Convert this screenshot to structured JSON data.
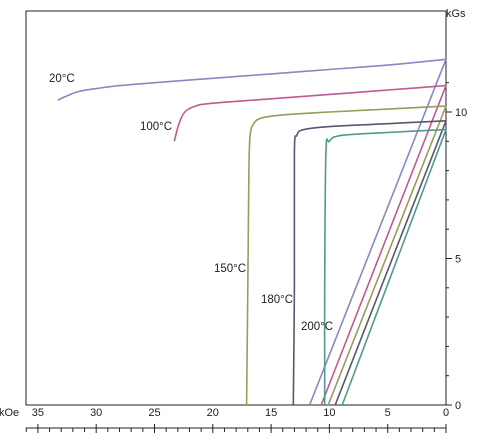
{
  "chart_data": {
    "type": "line",
    "title": "",
    "xlabel": "kOe",
    "ylabel": "kGs",
    "x_reversed": true,
    "xlim": [
      0,
      36
    ],
    "ylim": [
      0,
      12.4
    ],
    "x_ticks": [
      {
        "value": 35,
        "label": "35"
      },
      {
        "value": 30,
        "label": "30"
      },
      {
        "value": 25,
        "label": "25"
      },
      {
        "value": 20,
        "label": "20"
      },
      {
        "value": 15,
        "label": "15"
      },
      {
        "value": 10,
        "label": "10"
      },
      {
        "value": 5,
        "label": "5"
      },
      {
        "value": 0,
        "label": "0"
      }
    ],
    "y_ticks": [
      {
        "value": 0,
        "label": "0"
      },
      {
        "value": 5,
        "label": "5"
      },
      {
        "value": 10,
        "label": "10"
      }
    ],
    "grid": false,
    "series": [
      {
        "name": "20°C",
        "color": "#8c86c2",
        "demag_curve": [
          [
            0,
            11.8
          ],
          [
            5,
            11.6
          ],
          [
            10,
            11.45
          ],
          [
            15,
            11.3
          ],
          [
            20,
            11.15
          ],
          [
            25,
            11.0
          ],
          [
            28,
            10.9
          ],
          [
            30,
            10.8
          ],
          [
            31.5,
            10.7
          ],
          [
            32.5,
            10.55
          ],
          [
            33.3,
            10.4
          ]
        ],
        "recoil_line": [
          [
            0,
            11.8
          ],
          [
            11.7,
            0
          ]
        ]
      },
      {
        "name": "100°C",
        "color": "#c05a92",
        "demag_curve": [
          [
            0,
            10.9
          ],
          [
            5,
            10.75
          ],
          [
            10,
            10.6
          ],
          [
            15,
            10.45
          ],
          [
            20,
            10.3
          ],
          [
            21.5,
            10.2
          ],
          [
            22.4,
            10.0
          ],
          [
            22.9,
            9.6
          ],
          [
            23.3,
            9.0
          ]
        ],
        "recoil_line": [
          [
            0,
            10.9
          ],
          [
            10.7,
            0
          ]
        ]
      },
      {
        "name": "150°C",
        "color": "#9a9b5c",
        "demag_curve": [
          [
            0,
            10.2
          ],
          [
            5,
            10.1
          ],
          [
            10,
            10.0
          ],
          [
            14,
            9.9
          ],
          [
            15.8,
            9.8
          ],
          [
            16.5,
            9.6
          ],
          [
            16.8,
            9.2
          ],
          [
            16.9,
            8.0
          ],
          [
            17.0,
            4.0
          ],
          [
            17.1,
            0
          ]
        ],
        "recoil_line": [
          [
            0,
            10.2
          ],
          [
            10.1,
            0
          ]
        ]
      },
      {
        "name": "180°C",
        "color": "#5a5570",
        "demag_curve": [
          [
            0,
            9.7
          ],
          [
            5,
            9.6
          ],
          [
            10,
            9.5
          ],
          [
            12.2,
            9.4
          ],
          [
            12.8,
            9.2
          ],
          [
            13.0,
            8.6
          ],
          [
            13.0,
            4.0
          ],
          [
            13.1,
            0
          ]
        ],
        "recoil_line": [
          [
            0,
            9.7
          ],
          [
            9.5,
            0
          ]
        ]
      },
      {
        "name": "200°C",
        "color": "#4f9a88",
        "demag_curve": [
          [
            0,
            9.4
          ],
          [
            5,
            9.3
          ],
          [
            9,
            9.2
          ],
          [
            10.0,
            9.0
          ],
          [
            10.3,
            8.6
          ],
          [
            10.4,
            4.0
          ],
          [
            10.4,
            0
          ]
        ],
        "recoil_line": [
          [
            0,
            9.4
          ],
          [
            8.9,
            0
          ]
        ]
      }
    ],
    "annotations": [
      {
        "text": "20°C",
        "series": 0
      },
      {
        "text": "100°C",
        "series": 1
      },
      {
        "text": "150°C",
        "series": 2
      },
      {
        "text": "180°C",
        "series": 3
      },
      {
        "text": "200°C",
        "series": 4
      }
    ]
  }
}
